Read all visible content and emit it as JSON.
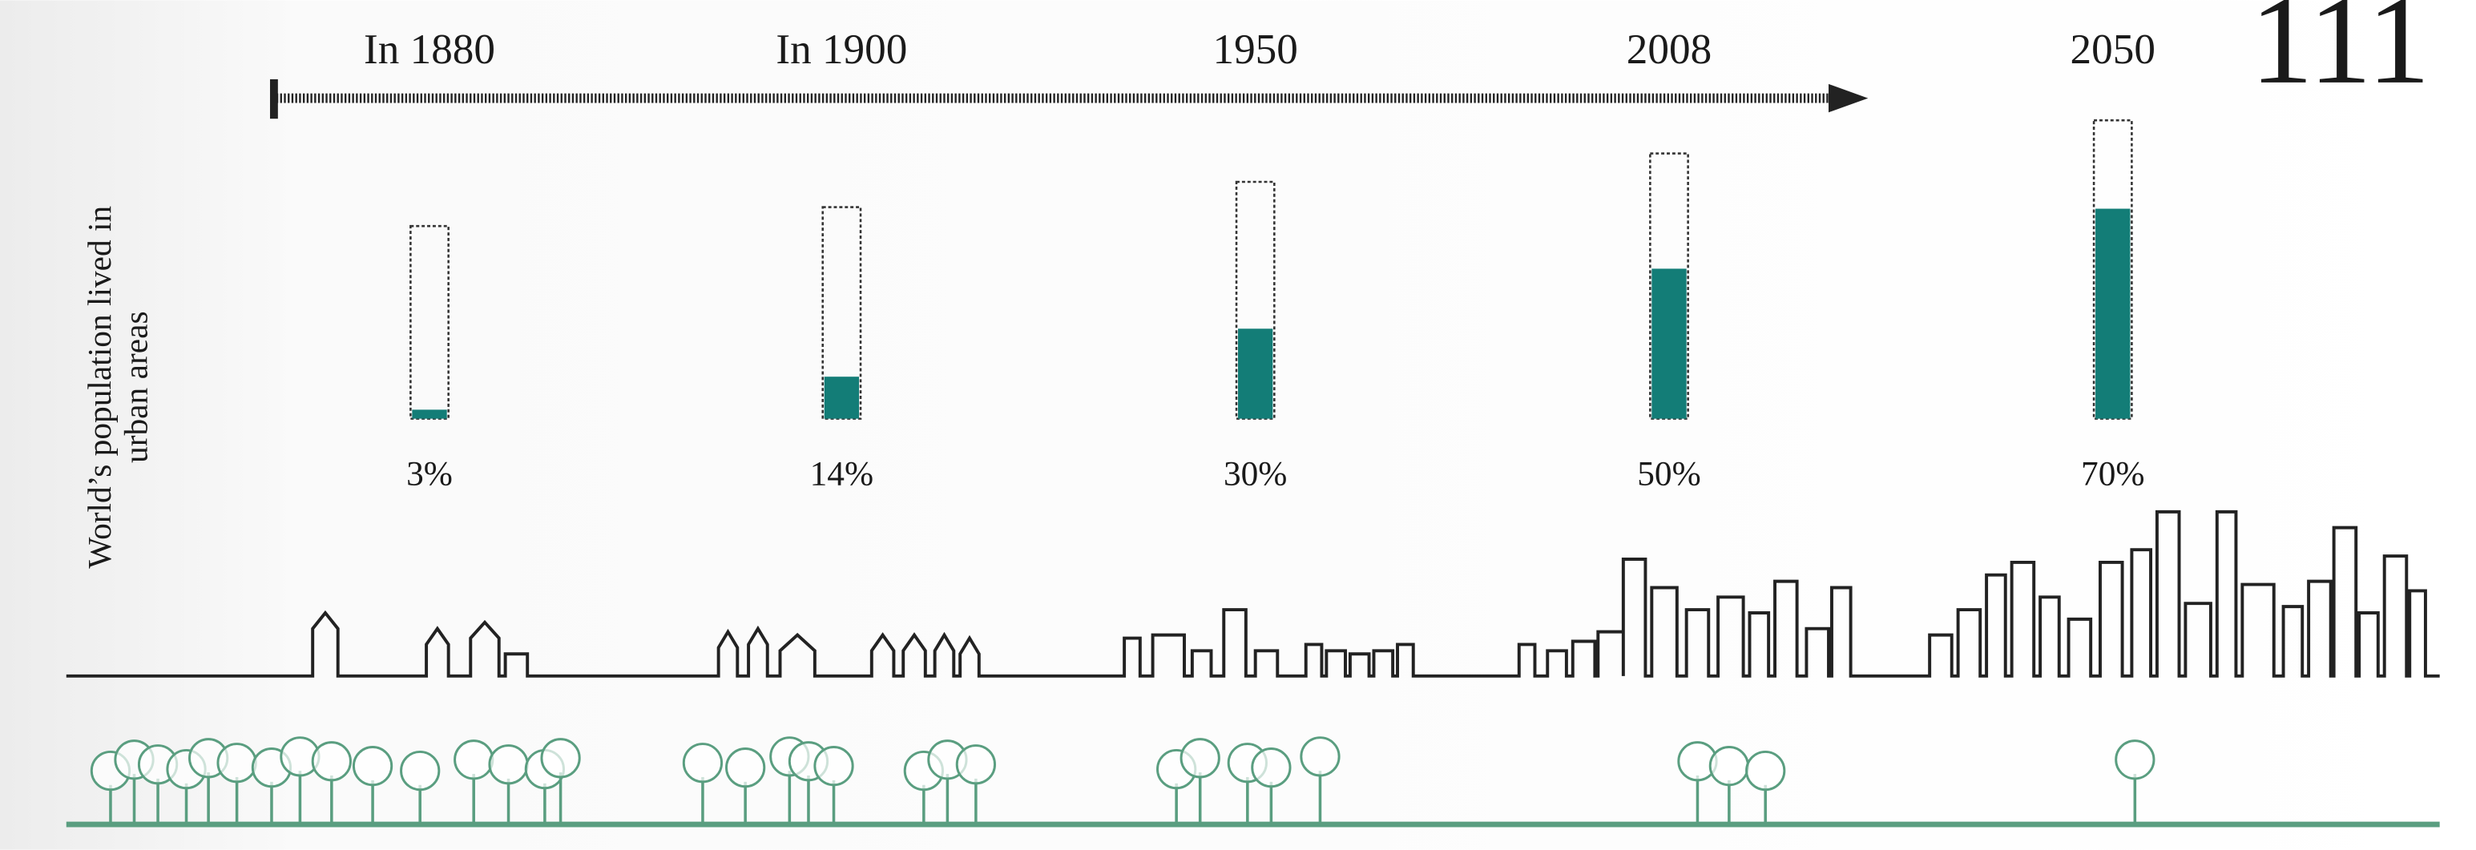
{
  "page_number": "111",
  "chart_data": {
    "type": "bar",
    "y_label": [
      "World’s population lived in",
      "urban areas"
    ],
    "categories": [
      "In 1880",
      "In 1900",
      "1950",
      "2008",
      "2050"
    ],
    "values": [
      3,
      14,
      30,
      50,
      70
    ],
    "value_labels": [
      "3%",
      "14%",
      "30%",
      "50%",
      "70%"
    ],
    "color": "#137d77"
  }
}
